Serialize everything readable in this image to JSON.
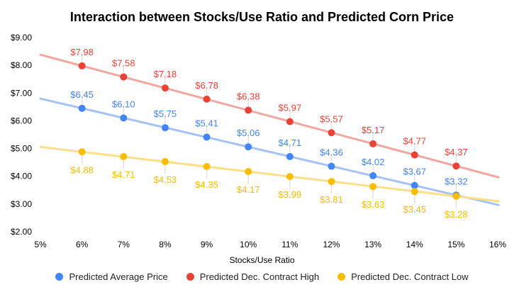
{
  "title": "Interaction between Stocks/Use Ratio and Predicted Corn Price",
  "chart_data": {
    "type": "line",
    "title": "Interaction between Stocks/Use Ratio and Predicted Corn Price",
    "xlabel": "Stocks/Use Ratio",
    "ylabel": "",
    "grid": false,
    "legend_position": "bottom",
    "background_color": "#ffffff",
    "label_stem_color": "#e0e0e0",
    "xlim": [
      5,
      16
    ],
    "ylim": [
      2,
      9
    ],
    "x_ticks": [
      "5%",
      "6%",
      "7%",
      "8%",
      "9%",
      "10%",
      "11%",
      "12%",
      "13%",
      "14%",
      "15%",
      "16%"
    ],
    "x_tick_values": [
      5,
      6,
      7,
      8,
      9,
      10,
      11,
      12,
      13,
      14,
      15,
      16
    ],
    "y_ticks": [
      "$2.00",
      "$3.00",
      "$4.00",
      "$5.00",
      "$6.00",
      "$7.00",
      "$8.00",
      "$9.00"
    ],
    "y_tick_values": [
      2,
      3,
      4,
      5,
      6,
      7,
      8,
      9
    ],
    "categories": [
      "6%",
      "7%",
      "8%",
      "9%",
      "10%",
      "11%",
      "12%",
      "13%",
      "14%",
      "15%"
    ],
    "x_values": [
      6,
      7,
      8,
      9,
      10,
      11,
      12,
      13,
      14,
      15
    ],
    "series": [
      {
        "name": "Predicted Average Price",
        "color": "#4285F4",
        "line_color": "#A5C3F8",
        "label_position": "above",
        "values": [
          6.45,
          6.1,
          5.75,
          5.41,
          5.06,
          4.71,
          4.36,
          4.02,
          3.67,
          3.32
        ],
        "labels": [
          "$6.45",
          "$6.10",
          "$5.75",
          "$5.41",
          "$5.06",
          "$4.71",
          "$4.36",
          "$4.02",
          "$3.67",
          "$3.32"
        ]
      },
      {
        "name": "Predicted Dec. Contract High",
        "color": "#EA4335",
        "line_color": "#F3A7A0",
        "label_position": "above",
        "values": [
          7.98,
          7.58,
          7.18,
          6.78,
          6.38,
          5.97,
          5.57,
          5.17,
          4.77,
          4.37
        ],
        "labels": [
          "$7.98",
          "$7.58",
          "$7.18",
          "$6.78",
          "$6.38",
          "$5.97",
          "$5.57",
          "$5.17",
          "$4.77",
          "$4.37"
        ]
      },
      {
        "name": "Predicted Dec. Contract Low",
        "color": "#FBBC04",
        "line_color": "#FDDF87",
        "label_position": "below",
        "values": [
          4.88,
          4.71,
          4.53,
          4.35,
          4.17,
          3.99,
          3.81,
          3.63,
          3.45,
          3.28
        ],
        "labels": [
          "$4.88",
          "$4.71",
          "$4.53",
          "$4.35",
          "$4.17",
          "$3.99",
          "$3.81",
          "$3.63",
          "$3.45",
          "$3.28"
        ]
      }
    ]
  }
}
